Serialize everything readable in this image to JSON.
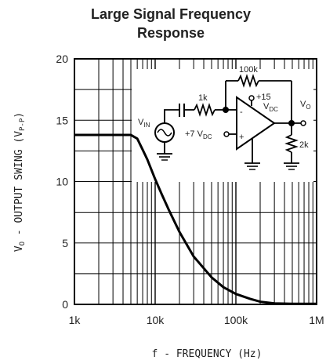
{
  "chart_data": {
    "type": "line",
    "title_line1": "Large Signal Frequency",
    "title_line2": "Response",
    "xlabel": "f - FREQUENCY (Hz)",
    "ylabel_main": "V",
    "ylabel_sub": "O",
    "ylabel_rest": " - OUTPUT SWING (V",
    "ylabel_unit_sub": "P-P",
    "ylabel_close": ")",
    "x_scale": "log",
    "xlim": [
      1000,
      1000000
    ],
    "ylim": [
      0,
      20
    ],
    "x_ticks": [
      {
        "value": 1000,
        "label": "1k"
      },
      {
        "value": 10000,
        "label": "10k"
      },
      {
        "value": 100000,
        "label": "100k"
      },
      {
        "value": 1000000,
        "label": "1M"
      }
    ],
    "y_ticks": [
      {
        "value": 0,
        "label": "0"
      },
      {
        "value": 5,
        "label": "5"
      },
      {
        "value": 10,
        "label": "10"
      },
      {
        "value": 15,
        "label": "15"
      },
      {
        "value": 20,
        "label": "20"
      }
    ],
    "grid": true,
    "series": [
      {
        "x": [
          1000,
          2000,
          4000,
          5000,
          6000,
          7000,
          8000,
          10000,
          12000,
          15000,
          20000,
          30000,
          50000,
          70000,
          100000,
          150000,
          200000,
          300000,
          500000,
          1000000
        ],
        "y": [
          13.8,
          13.8,
          13.8,
          13.8,
          13.5,
          12.6,
          11.8,
          10.2,
          9.0,
          7.6,
          5.9,
          3.9,
          2.2,
          1.4,
          0.85,
          0.45,
          0.22,
          0.08,
          0.05,
          0.05
        ]
      }
    ]
  },
  "circuit": {
    "r_feedback": "100k",
    "r_input": "1k",
    "supply_main": "+15",
    "supply_sub": "V",
    "supply_sub2": "DC",
    "bias_main": "+7 V",
    "bias_sub": "DC",
    "vin_main": "V",
    "vin_sub": "IN",
    "vout_main": "V",
    "vout_sub": "O",
    "r_load": "2k",
    "minus": "-",
    "plus": "+"
  }
}
